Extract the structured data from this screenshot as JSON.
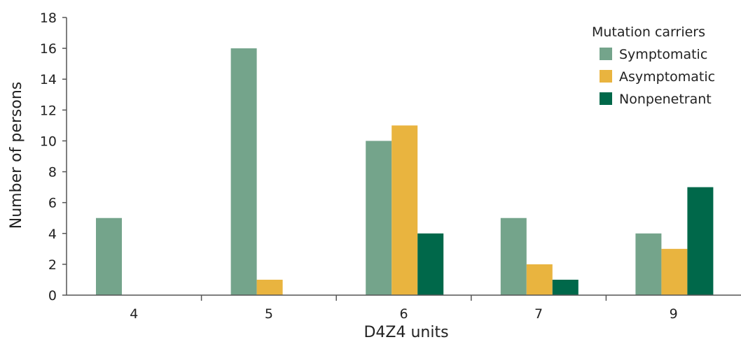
{
  "chart_data": {
    "type": "bar",
    "title": "",
    "xlabel": "D4Z4 units",
    "ylabel": "Number of persons",
    "categories": [
      "4",
      "5",
      "6",
      "7",
      "9"
    ],
    "ylim": [
      0,
      18
    ],
    "yticks": [
      0,
      2,
      4,
      6,
      8,
      10,
      12,
      14,
      16,
      18
    ],
    "grid": false,
    "legend": {
      "title": "Mutation carriers",
      "placement": "top-right"
    },
    "series": [
      {
        "name": "Symptomatic",
        "color": "#74a48b",
        "values": [
          5,
          16,
          10,
          5,
          4
        ]
      },
      {
        "name": "Asymptomatic",
        "color": "#e9b43f",
        "values": [
          0,
          1,
          11,
          2,
          3
        ]
      },
      {
        "name": "Nonpenetrant",
        "color": "#00684a",
        "values": [
          0,
          0,
          4,
          1,
          7
        ]
      }
    ]
  }
}
